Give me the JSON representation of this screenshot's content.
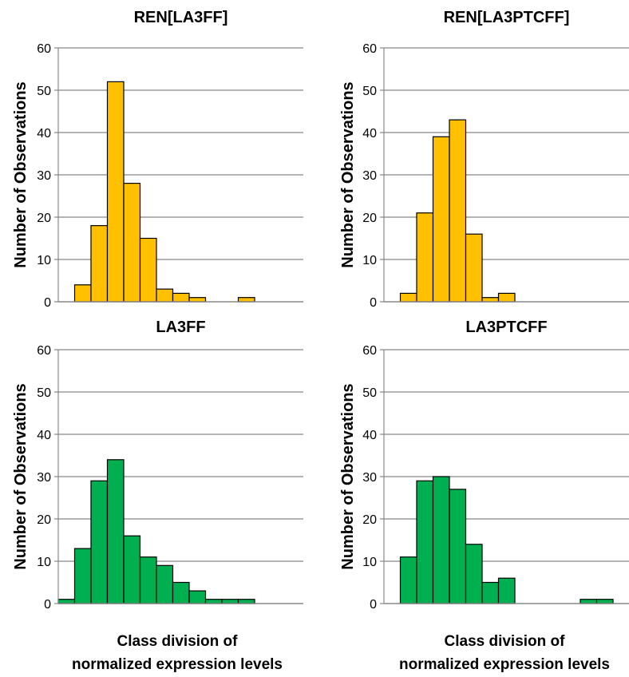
{
  "chart_data": [
    {
      "type": "bar",
      "title": "REN[LA3FF]",
      "ylabel": "Number of Observations",
      "xlabel": "",
      "ylim": [
        0,
        60
      ],
      "yticks": [
        0,
        10,
        20,
        30,
        40,
        50,
        60
      ],
      "grid": true,
      "color": "#FFC000",
      "values": [
        0,
        4,
        18,
        52,
        28,
        15,
        3,
        2,
        1,
        0,
        0,
        1,
        0,
        0
      ]
    },
    {
      "type": "bar",
      "title": "REN[LA3PTCFF]",
      "ylabel": "Number of Observations",
      "xlabel": "",
      "ylim": [
        0,
        60
      ],
      "yticks": [
        0,
        10,
        20,
        30,
        40,
        50,
        60
      ],
      "grid": true,
      "color": "#FFC000",
      "values": [
        0,
        2,
        21,
        39,
        43,
        16,
        1,
        2,
        0,
        0,
        0,
        0,
        0,
        0
      ]
    },
    {
      "type": "bar",
      "title": "LA3FF",
      "ylabel": "Number of Observations",
      "xlabel": "Class division of normalized expression levels",
      "ylim": [
        0,
        60
      ],
      "yticks": [
        0,
        10,
        20,
        30,
        40,
        50,
        60
      ],
      "grid": true,
      "color": "#00B050",
      "values": [
        1,
        13,
        29,
        34,
        16,
        11,
        9,
        5,
        3,
        1,
        1,
        1,
        0,
        0
      ]
    },
    {
      "type": "bar",
      "title": "LA3PTCFF",
      "ylabel": "Number of Observations",
      "xlabel": "Class division of normalized expression levels",
      "ylim": [
        0,
        60
      ],
      "yticks": [
        0,
        10,
        20,
        30,
        40,
        50,
        60
      ],
      "grid": true,
      "color": "#00B050",
      "values": [
        0,
        11,
        29,
        30,
        27,
        14,
        5,
        6,
        0,
        0,
        0,
        0,
        1,
        1
      ]
    }
  ]
}
